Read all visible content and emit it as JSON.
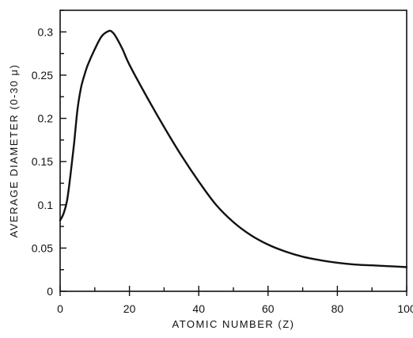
{
  "chart_data": {
    "type": "line",
    "title": "",
    "xlabel": "ATOMIC NUMBER (Z)",
    "ylabel": "AVERAGE DIAMETER (0-30 μ)",
    "xlim": [
      0,
      100
    ],
    "ylim": [
      0,
      0.325
    ],
    "grid": false,
    "x_ticks": [
      0,
      20,
      40,
      60,
      80,
      100
    ],
    "x_tick_labels": [
      "0",
      "20",
      "40",
      "60",
      "80",
      "100"
    ],
    "y_ticks": [
      0,
      0.05,
      0.1,
      0.15,
      0.2,
      0.25,
      0.3
    ],
    "y_tick_labels": [
      "0",
      "0.05",
      "0.1",
      "0.15",
      "0.2",
      "0.25",
      "0.3"
    ],
    "series": [
      {
        "color": "#111111",
        "x": [
          0,
          1,
          2,
          3,
          4,
          5,
          6,
          7,
          8,
          10,
          12,
          14,
          15,
          16,
          18,
          20,
          25,
          30,
          35,
          40,
          45,
          50,
          55,
          60,
          65,
          70,
          75,
          80,
          85,
          90,
          95,
          100
        ],
        "y": [
          0.082,
          0.09,
          0.105,
          0.135,
          0.17,
          0.21,
          0.235,
          0.25,
          0.262,
          0.28,
          0.295,
          0.301,
          0.3,
          0.295,
          0.28,
          0.262,
          0.225,
          0.19,
          0.157,
          0.127,
          0.1,
          0.08,
          0.065,
          0.054,
          0.046,
          0.04,
          0.036,
          0.033,
          0.031,
          0.03,
          0.029,
          0.028
        ]
      }
    ]
  }
}
